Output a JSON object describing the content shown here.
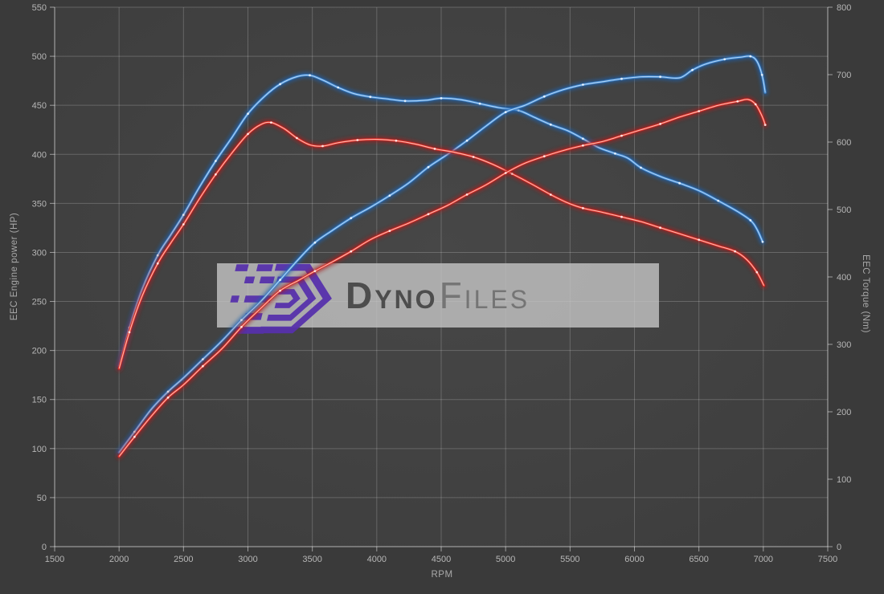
{
  "watermark": {
    "brand_bold": "Dyno",
    "brand_light": "Files",
    "logo_color": "#5731ac",
    "box_color": "rgba(197,197,197,0.8)"
  },
  "colors": {
    "background": "#3a3a3a",
    "plot_center": "#474747",
    "plot_edge": "#3c3c3c",
    "gridline": "rgba(255,255,255,0.20)",
    "axis_text": "#b6b6b6",
    "blue_series": "#3f86cf",
    "red_series": "#d92b25"
  },
  "chart_data": {
    "type": "line",
    "title": "",
    "xlabel": "RPM",
    "ylabel_left": "EEC Engine power (HP)",
    "ylabel_right": "EEC Torque (Nm)",
    "x_range": [
      1500,
      7500
    ],
    "left_range": [
      0,
      550
    ],
    "right_range": [
      0,
      800
    ],
    "x_ticks": [
      1500,
      2000,
      2500,
      3000,
      3500,
      4000,
      4500,
      5000,
      5500,
      6000,
      6500,
      7000,
      7500
    ],
    "left_ticks": [
      0,
      50,
      100,
      150,
      200,
      250,
      300,
      350,
      400,
      450,
      500,
      550
    ],
    "right_ticks": [
      0,
      100,
      200,
      300,
      400,
      500,
      600,
      700,
      800
    ],
    "grid": "horizontal lines at left-axis ticks, vertical lines at x ticks",
    "legend": "none",
    "series": [
      {
        "name": "torque-blue",
        "axis": "right",
        "unit": "Nm",
        "color": "#3f86cf",
        "core": "#b9d9f7",
        "glow": "#1e62b0",
        "points": [
          [
            2000,
            268
          ],
          [
            2080,
            325
          ],
          [
            2180,
            382
          ],
          [
            2300,
            432
          ],
          [
            2400,
            462
          ],
          [
            2500,
            492
          ],
          [
            2620,
            532
          ],
          [
            2750,
            572
          ],
          [
            2880,
            608
          ],
          [
            3000,
            642
          ],
          [
            3130,
            668
          ],
          [
            3250,
            686
          ],
          [
            3380,
            697
          ],
          [
            3480,
            699
          ],
          [
            3580,
            692
          ],
          [
            3700,
            681
          ],
          [
            3820,
            672
          ],
          [
            3950,
            667
          ],
          [
            4080,
            664
          ],
          [
            4220,
            661
          ],
          [
            4380,
            662
          ],
          [
            4500,
            665
          ],
          [
            4650,
            663
          ],
          [
            4800,
            657
          ],
          [
            4950,
            651
          ],
          [
            5100,
            647
          ],
          [
            5220,
            637
          ],
          [
            5350,
            626
          ],
          [
            5480,
            617
          ],
          [
            5600,
            605
          ],
          [
            5720,
            592
          ],
          [
            5850,
            583
          ],
          [
            5950,
            576
          ],
          [
            6050,
            562
          ],
          [
            6200,
            549
          ],
          [
            6350,
            539
          ],
          [
            6500,
            528
          ],
          [
            6650,
            513
          ],
          [
            6800,
            497
          ],
          [
            6900,
            484
          ],
          [
            6950,
            471
          ],
          [
            6995,
            452
          ]
        ]
      },
      {
        "name": "power-blue",
        "axis": "left",
        "unit": "HP",
        "color": "#3f86cf",
        "core": "#b9d9f7",
        "glow": "#1e62b0",
        "points": [
          [
            2000,
            96
          ],
          [
            2120,
            117
          ],
          [
            2250,
            140
          ],
          [
            2380,
            158
          ],
          [
            2500,
            172
          ],
          [
            2650,
            191
          ],
          [
            2800,
            210
          ],
          [
            2950,
            231
          ],
          [
            3100,
            250
          ],
          [
            3250,
            272
          ],
          [
            3400,
            294
          ],
          [
            3520,
            310
          ],
          [
            3650,
            322
          ],
          [
            3800,
            335
          ],
          [
            3950,
            346
          ],
          [
            4100,
            358
          ],
          [
            4250,
            371
          ],
          [
            4400,
            387
          ],
          [
            4550,
            400
          ],
          [
            4700,
            414
          ],
          [
            4850,
            429
          ],
          [
            5000,
            443
          ],
          [
            5150,
            450
          ],
          [
            5300,
            459
          ],
          [
            5450,
            466
          ],
          [
            5600,
            471
          ],
          [
            5750,
            474
          ],
          [
            5900,
            477
          ],
          [
            6050,
            479
          ],
          [
            6200,
            479
          ],
          [
            6350,
            478
          ],
          [
            6450,
            486
          ],
          [
            6550,
            492
          ],
          [
            6700,
            497
          ],
          [
            6820,
            499
          ],
          [
            6900,
            500
          ],
          [
            6950,
            495
          ],
          [
            6990,
            481
          ],
          [
            7015,
            463
          ]
        ]
      },
      {
        "name": "torque-red",
        "axis": "right",
        "unit": "Nm",
        "color": "#d92b25",
        "core": "#ffc4b8",
        "glow": "#a81a1a",
        "points": [
          [
            2000,
            264
          ],
          [
            2080,
            318
          ],
          [
            2180,
            372
          ],
          [
            2300,
            420
          ],
          [
            2400,
            450
          ],
          [
            2500,
            478
          ],
          [
            2620,
            515
          ],
          [
            2750,
            552
          ],
          [
            2880,
            585
          ],
          [
            3000,
            612
          ],
          [
            3100,
            626
          ],
          [
            3180,
            629
          ],
          [
            3280,
            620
          ],
          [
            3380,
            606
          ],
          [
            3480,
            596
          ],
          [
            3580,
            594
          ],
          [
            3700,
            599
          ],
          [
            3850,
            603
          ],
          [
            4000,
            604
          ],
          [
            4150,
            602
          ],
          [
            4300,
            597
          ],
          [
            4450,
            590
          ],
          [
            4600,
            585
          ],
          [
            4750,
            578
          ],
          [
            4900,
            567
          ],
          [
            5050,
            553
          ],
          [
            5200,
            538
          ],
          [
            5350,
            522
          ],
          [
            5480,
            510
          ],
          [
            5600,
            502
          ],
          [
            5750,
            496
          ],
          [
            5900,
            489
          ],
          [
            6050,
            482
          ],
          [
            6200,
            473
          ],
          [
            6350,
            464
          ],
          [
            6500,
            455
          ],
          [
            6650,
            446
          ],
          [
            6780,
            438
          ],
          [
            6870,
            426
          ],
          [
            6950,
            407
          ],
          [
            7005,
            387
          ]
        ]
      },
      {
        "name": "power-red",
        "axis": "left",
        "unit": "HP",
        "color": "#d92b25",
        "core": "#ffc4b8",
        "glow": "#a81a1a",
        "points": [
          [
            2000,
            92
          ],
          [
            2120,
            112
          ],
          [
            2250,
            133
          ],
          [
            2380,
            152
          ],
          [
            2500,
            165
          ],
          [
            2650,
            184
          ],
          [
            2800,
            202
          ],
          [
            2950,
            224
          ],
          [
            3100,
            243
          ],
          [
            3250,
            261
          ],
          [
            3400,
            272
          ],
          [
            3520,
            281
          ],
          [
            3650,
            290
          ],
          [
            3800,
            301
          ],
          [
            3950,
            313
          ],
          [
            4100,
            322
          ],
          [
            4250,
            330
          ],
          [
            4400,
            339
          ],
          [
            4550,
            348
          ],
          [
            4700,
            359
          ],
          [
            4850,
            369
          ],
          [
            5000,
            381
          ],
          [
            5150,
            391
          ],
          [
            5300,
            398
          ],
          [
            5450,
            404
          ],
          [
            5600,
            409
          ],
          [
            5750,
            413
          ],
          [
            5900,
            419
          ],
          [
            6050,
            425
          ],
          [
            6200,
            431
          ],
          [
            6350,
            438
          ],
          [
            6500,
            444
          ],
          [
            6650,
            450
          ],
          [
            6800,
            454
          ],
          [
            6880,
            456
          ],
          [
            6940,
            451
          ],
          [
            6990,
            439
          ],
          [
            7015,
            430
          ]
        ]
      }
    ]
  }
}
